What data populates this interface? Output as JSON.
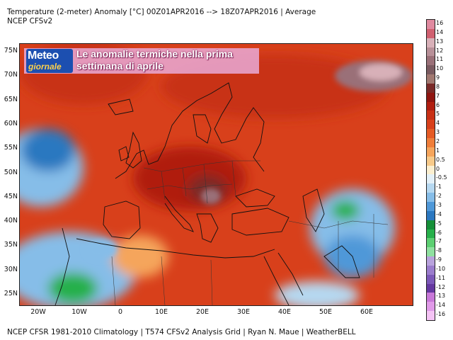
{
  "header": {
    "line1": "Temperature (2-meter) Anomaly  [°C] 00Z01APR2016 --> 18Z07APR2016 | Average",
    "line2": "NCEP CFSv2"
  },
  "footer": "NCEP CFSR 1981-2010 Climatology | T574 CFSv2 Analysis Grid | Ryan N. Maue | WeatherBELL",
  "overlay": {
    "logo_top": "Meteo",
    "logo_bottom": "giornale",
    "caption": "Le anomalie termiche nella prima settimana di aprile"
  },
  "map": {
    "lat_labels": [
      "75N",
      "70N",
      "65N",
      "60N",
      "55N",
      "50N",
      "45N",
      "40N",
      "35N",
      "30N",
      "25N"
    ],
    "lon_labels": [
      "20W",
      "10W",
      "0",
      "10E",
      "20E",
      "30E",
      "40E",
      "50E",
      "60E"
    ]
  },
  "legend": {
    "labels": [
      "16",
      "14",
      "13",
      "12",
      "11",
      "10",
      "9",
      "8",
      "7",
      "6",
      "5",
      "4",
      "3",
      "2",
      "1",
      "0.5",
      "0",
      "-0.5",
      "-1",
      "-2",
      "-3",
      "-4",
      "-5",
      "-6",
      "-7",
      "-8",
      "-9",
      "-10",
      "-11",
      "-12",
      "-13",
      "-14",
      "-16"
    ],
    "colors": [
      "#e08aa0",
      "#d06070",
      "#d8b0b8",
      "#b89098",
      "#9a7078",
      "#7a5a60",
      "#a07870",
      "#7a2a28",
      "#8f1510",
      "#b01e10",
      "#c83015",
      "#d8401b",
      "#e55b25",
      "#ef7e3a",
      "#f5a55c",
      "#f7ca8a",
      "#fbefd0",
      "#e3f0f8",
      "#b6d8f0",
      "#86bde8",
      "#4f98d8",
      "#2b78c0",
      "#158f38",
      "#27b04b",
      "#5ccf72",
      "#8fe0a0",
      "#b8a2dc",
      "#9a7ccc",
      "#7c58b8",
      "#6538a0",
      "#c878d8",
      "#e09ae8",
      "#f4c3f4"
    ]
  }
}
